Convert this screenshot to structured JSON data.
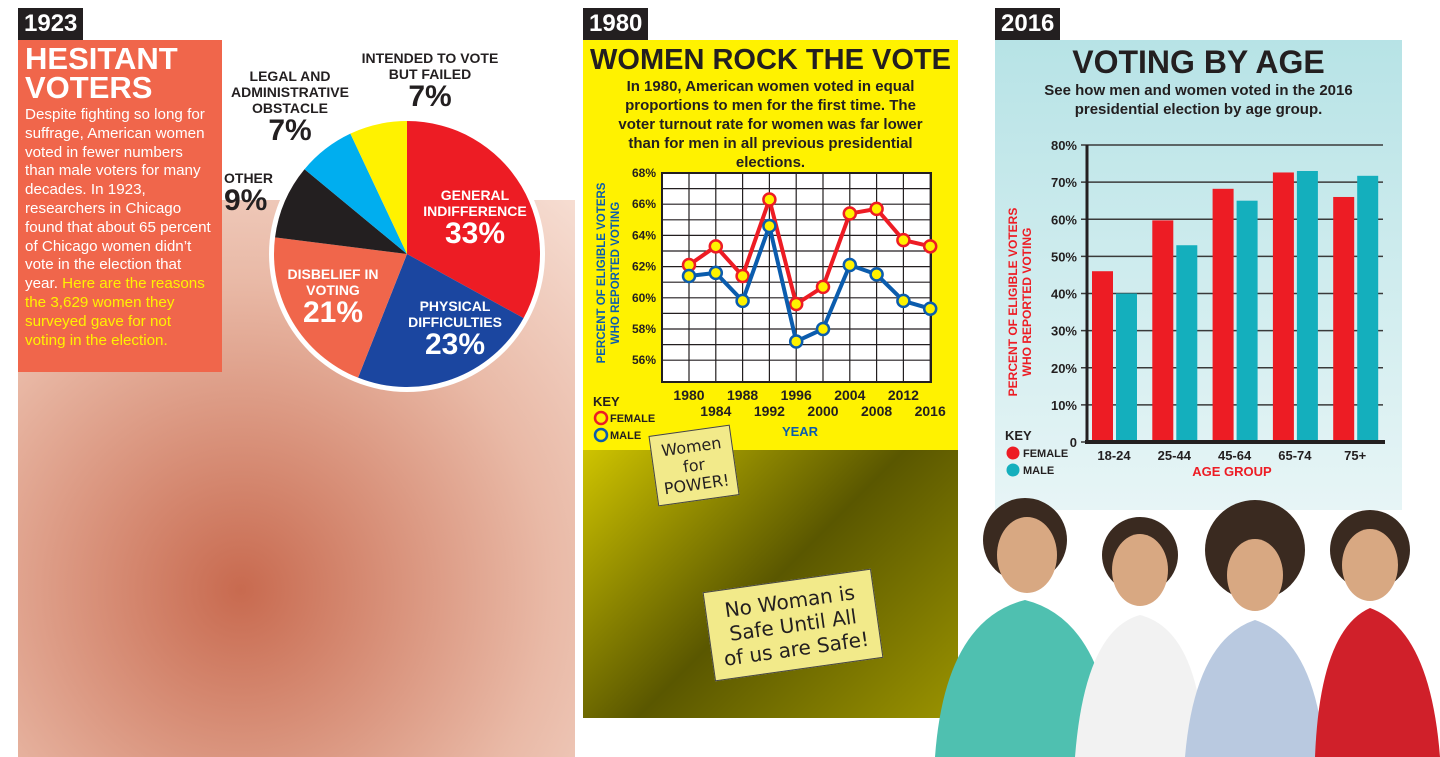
{
  "panel1": {
    "year": "1923",
    "title": "HESITANT VOTERS",
    "body": "Despite fighting so long for suffrage, American women voted in fewer numbers than male voters for many decades. In 1923, researchers in Chicago found that about 65 percent of Chicago women didn’t vote in the election that year.",
    "highlight": "Here are the reasons the 3,629 women they surveyed gave for not voting in the election."
  },
  "panel2": {
    "year": "1980",
    "title": "WOMEN ROCK THE VOTE",
    "subtitle": "In 1980, American women voted in equal proportions to men for the first time. The voter turnout rate for women was far lower than for men in all previous presidential elections.",
    "sign1": "Women for POWER!",
    "sign2": "No Woman is Safe Until All of us are Safe!"
  },
  "panel3": {
    "year": "2016",
    "title": "VOTING BY AGE",
    "subtitle": "See how men and women voted in the 2016 presidential election by age group."
  },
  "chart_data": [
    {
      "type": "pie",
      "title": "HESITANT VOTERS",
      "slices": [
        {
          "label": "GENERAL INDIFFERENCE",
          "value": 33,
          "display": "33%",
          "color": "#ed1c24"
        },
        {
          "label": "PHYSICAL DIFFICULTIES",
          "value": 23,
          "display": "23%",
          "color": "#1b46a0"
        },
        {
          "label": "DISBELIEF IN VOTING",
          "value": 21,
          "display": "21%",
          "color": "#f0664b"
        },
        {
          "label": "OTHER",
          "value": 9,
          "display": "9%",
          "color": "#231f20"
        },
        {
          "label": "LEGAL AND ADMINISTRATIVE OBSTACLE",
          "value": 7,
          "display": "7%",
          "color": "#00aeef"
        },
        {
          "label": "INTENDED TO VOTE BUT FAILED",
          "value": 7,
          "display": "7%",
          "color": "#fff200"
        }
      ]
    },
    {
      "type": "line",
      "xlabel": "YEAR",
      "ylabel": "PERCENT OF ELIGIBLE VOTERS WHO REPORTED VOTING",
      "ylim": [
        55,
        68
      ],
      "x": [
        1980,
        1984,
        1988,
        1992,
        1996,
        2000,
        2004,
        2008,
        2012,
        2016
      ],
      "yticks": [
        "56%",
        "58%",
        "60%",
        "62%",
        "64%",
        "66%",
        "68%"
      ],
      "key_title": "KEY",
      "series": [
        {
          "name": "FEMALE",
          "color": "#ed1c24",
          "values": [
            62.1,
            63.3,
            61.4,
            66.3,
            59.6,
            60.7,
            65.4,
            65.7,
            63.7,
            63.3
          ]
        },
        {
          "name": "MALE",
          "color": "#0b5cad",
          "values": [
            61.4,
            61.6,
            59.8,
            64.6,
            57.2,
            58.0,
            62.1,
            61.5,
            59.8,
            59.3
          ]
        }
      ]
    },
    {
      "type": "bar",
      "xlabel": "AGE GROUP",
      "ylabel": "PERCENT OF ELIGIBLE VOTERS WHO REPORTED VOTING",
      "ylim": [
        0,
        80
      ],
      "categories": [
        "18-24",
        "25-44",
        "45-64",
        "65-74",
        "75+"
      ],
      "yticks": [
        "0",
        "10%",
        "20%",
        "30%",
        "40%",
        "50%",
        "60%",
        "70%",
        "80%"
      ],
      "key_title": "KEY",
      "series": [
        {
          "name": "FEMALE",
          "color": "#ed1c24",
          "values": [
            46,
            59.7,
            68.2,
            72.6,
            66
          ]
        },
        {
          "name": "MALE",
          "color": "#14afbd",
          "values": [
            40,
            53,
            65,
            73,
            71.7
          ]
        }
      ]
    }
  ]
}
